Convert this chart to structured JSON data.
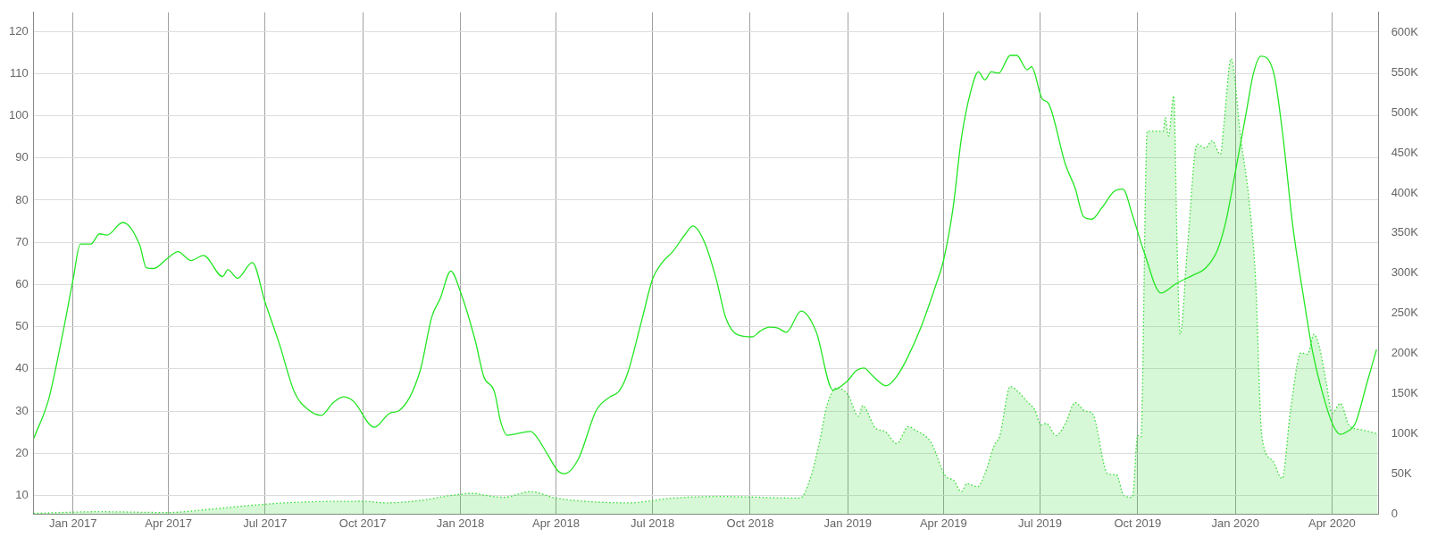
{
  "chart_data": {
    "type": "line",
    "xlim": [
      "2016-11-25",
      "2020-05-15"
    ],
    "xticks": [
      {
        "value": "2017-01-01",
        "label": "Jan 2017"
      },
      {
        "value": "2017-04-01",
        "label": "Apr 2017"
      },
      {
        "value": "2017-07-01",
        "label": "Jul 2017"
      },
      {
        "value": "2017-10-01",
        "label": "Oct 2017"
      },
      {
        "value": "2018-01-01",
        "label": "Jan 2018"
      },
      {
        "value": "2018-04-01",
        "label": "Apr 2018"
      },
      {
        "value": "2018-07-01",
        "label": "Jul 2018"
      },
      {
        "value": "2018-10-01",
        "label": "Oct 2018"
      },
      {
        "value": "2019-01-01",
        "label": "Jan 2019"
      },
      {
        "value": "2019-04-01",
        "label": "Apr 2019"
      },
      {
        "value": "2019-07-01",
        "label": "Jul 2019"
      },
      {
        "value": "2019-10-01",
        "label": "Oct 2019"
      },
      {
        "value": "2020-01-01",
        "label": "Jan 2020"
      },
      {
        "value": "2020-04-01",
        "label": "Apr 2020"
      }
    ],
    "ylim": [
      5.6,
      124.5
    ],
    "yticks": [
      10,
      20,
      30,
      40,
      50,
      60,
      70,
      80,
      90,
      100,
      110,
      120
    ],
    "y2lim": [
      0,
      625000
    ],
    "y2ticks": [
      0,
      {
        "value": 50000,
        "label": "50K"
      },
      {
        "value": 100000,
        "label": "100K"
      },
      {
        "value": 150000,
        "label": "150K"
      },
      {
        "value": 200000,
        "label": "200K"
      },
      {
        "value": 250000,
        "label": "250K"
      },
      {
        "value": 300000,
        "label": "300K"
      },
      {
        "value": 350000,
        "label": "350K"
      },
      {
        "value": 400000,
        "label": "400K"
      },
      {
        "value": 450000,
        "label": "450K"
      },
      {
        "value": 500000,
        "label": "500K"
      },
      {
        "value": 550000,
        "label": "550K"
      },
      {
        "value": 600000,
        "label": "600K"
      }
    ],
    "grid": true,
    "legend": false,
    "marker": "none",
    "series": [
      {
        "type": "area",
        "axis": "y2",
        "color": "#33dd33",
        "line_style": "dotted",
        "x": [
          "2016-11-25",
          "2017-01-26",
          "2017-03-31",
          "2017-05-10",
          "2017-06-18",
          "2017-08-05",
          "2017-10-01",
          "2017-10-23",
          "2017-11-24",
          "2017-12-22",
          "2018-01-14",
          "2018-01-22",
          "2018-02-11",
          "2018-03-08",
          "2018-04-01",
          "2018-04-28",
          "2018-06-08",
          "2018-07-20",
          "2018-09-02",
          "2018-11-17",
          "2018-11-26",
          "2018-12-05",
          "2018-12-12",
          "2018-12-21",
          "2019-01-01",
          "2019-01-11",
          "2019-01-15",
          "2019-01-27",
          "2019-02-05",
          "2019-02-16",
          "2019-02-27",
          "2019-03-05",
          "2019-03-20",
          "2019-04-04",
          "2019-04-10",
          "2019-04-18",
          "2019-04-23",
          "2019-05-03",
          "2019-05-10",
          "2019-05-19",
          "2019-05-24",
          "2019-06-03",
          "2019-06-10",
          "2019-06-19",
          "2019-06-26",
          "2019-07-02",
          "2019-07-07",
          "2019-07-16",
          "2019-07-25",
          "2019-08-03",
          "2019-08-13",
          "2019-08-19",
          "2019-09-03",
          "2019-09-11",
          "2019-09-18",
          "2019-09-26",
          "2019-10-01",
          "2019-10-04",
          "2019-10-10",
          "2019-10-25",
          "2019-10-27",
          "2019-10-30",
          "2019-11-04",
          "2019-11-07",
          "2019-11-10",
          "2019-11-17",
          "2019-11-26",
          "2019-12-04",
          "2019-12-10",
          "2019-12-18",
          "2019-12-21",
          "2019-12-28",
          "2020-01-06",
          "2020-01-14",
          "2020-01-20",
          "2020-01-26",
          "2020-02-05",
          "2020-02-14",
          "2020-02-22",
          "2020-03-03",
          "2020-03-09",
          "2020-03-15",
          "2020-03-20",
          "2020-03-27",
          "2020-04-01",
          "2020-04-09",
          "2020-04-17",
          "2020-04-29",
          "2020-05-14"
        ],
        "values": [
          1000,
          3000,
          2000,
          6000,
          11000,
          15000,
          16000,
          14000,
          17000,
          23000,
          26000,
          24000,
          21000,
          28000,
          20000,
          16000,
          14000,
          20000,
          22000,
          20000,
          42000,
          88000,
          134000,
          157000,
          149000,
          122000,
          135000,
          107000,
          103000,
          88000,
          109000,
          105000,
          90000,
          46000,
          43000,
          28000,
          38000,
          34000,
          50000,
          86000,
          97000,
          159000,
          153000,
          140000,
          130000,
          111000,
          113000,
          98000,
          113000,
          139000,
          128000,
          126000,
          50000,
          49000,
          23000,
          21000,
          98000,
          96000,
          477000,
          477000,
          494000,
          471000,
          521000,
          343000,
          224000,
          335000,
          461000,
          456000,
          465000,
          448000,
          482000,
          567000,
          469000,
          390000,
          293000,
          96000,
          67000,
          44000,
          130000,
          201000,
          199000,
          224000,
          209000,
          161000,
          126000,
          138000,
          111000,
          105000,
          100000
        ]
      },
      {
        "type": "line",
        "color": "#22e622",
        "line_style": "solid",
        "x": [
          "2016-11-25",
          "2016-12-09",
          "2016-12-22",
          "2017-01-01",
          "2017-01-08",
          "2017-01-18",
          "2017-01-26",
          "2017-02-02",
          "2017-02-17",
          "2017-03-05",
          "2017-03-11",
          "2017-03-18",
          "2017-03-31",
          "2017-04-10",
          "2017-04-22",
          "2017-05-04",
          "2017-05-22",
          "2017-05-27",
          "2017-06-05",
          "2017-06-19",
          "2017-07-01",
          "2017-07-14",
          "2017-07-29",
          "2017-08-11",
          "2017-08-23",
          "2017-09-03",
          "2017-09-13",
          "2017-09-22",
          "2017-10-12",
          "2017-10-27",
          "2017-11-04",
          "2017-11-24",
          "2017-12-05",
          "2017-12-13",
          "2017-12-23",
          "2018-01-01",
          "2018-01-15",
          "2018-01-23",
          "2018-02-02",
          "2018-02-08",
          "2018-02-14",
          "2018-03-08",
          "2018-03-13",
          "2018-03-24",
          "2018-04-03",
          "2018-04-09",
          "2018-04-22",
          "2018-05-09",
          "2018-05-22",
          "2018-05-30",
          "2018-06-07",
          "2018-06-21",
          "2018-07-01",
          "2018-07-10",
          "2018-07-20",
          "2018-08-01",
          "2018-08-08",
          "2018-08-19",
          "2018-08-30",
          "2018-09-08",
          "2018-09-19",
          "2018-10-03",
          "2018-10-10",
          "2018-10-19",
          "2018-10-27",
          "2018-11-04",
          "2018-11-18",
          "2018-12-02",
          "2018-12-18",
          "2018-12-31",
          "2019-01-09",
          "2019-01-16",
          "2019-01-25",
          "2019-02-06",
          "2019-02-16",
          "2019-02-26",
          "2019-03-11",
          "2019-03-25",
          "2019-04-01",
          "2019-04-10",
          "2019-04-18",
          "2019-04-27",
          "2019-05-04",
          "2019-05-10",
          "2019-05-16",
          "2019-05-23",
          "2019-06-03",
          "2019-06-09",
          "2019-06-19",
          "2019-06-23",
          "2019-07-03",
          "2019-07-09",
          "2019-07-25",
          "2019-08-03",
          "2019-08-11",
          "2019-08-19",
          "2019-08-28",
          "2019-09-09",
          "2019-09-17",
          "2019-09-26",
          "2019-10-07",
          "2019-10-23",
          "2019-11-06",
          "2019-11-22",
          "2019-12-04",
          "2019-12-15",
          "2019-12-23",
          "2019-12-31",
          "2020-01-11",
          "2020-01-18",
          "2020-01-25",
          "2020-01-30",
          "2020-02-07",
          "2020-02-15",
          "2020-02-24",
          "2020-03-05",
          "2020-03-14",
          "2020-03-24",
          "2020-04-02",
          "2020-04-09",
          "2020-04-15",
          "2020-04-23",
          "2020-05-04",
          "2020-05-13"
        ],
        "values": [
          23.5,
          32.7,
          47.9,
          61,
          69.6,
          69.6,
          72,
          71.7,
          74.7,
          69.3,
          64,
          63.8,
          66.2,
          67.8,
          65.7,
          66.9,
          61.9,
          63.5,
          61.5,
          65.2,
          55.8,
          46.3,
          34.3,
          30.3,
          29,
          32,
          33.4,
          32.4,
          26.2,
          29.6,
          30.1,
          39.5,
          52.3,
          56.7,
          63.2,
          58.3,
          46.7,
          38.2,
          34.6,
          27.4,
          24.3,
          25.2,
          24.2,
          19.8,
          15.8,
          15.2,
          18.6,
          30.2,
          33.4,
          34.6,
          38.6,
          51.7,
          61.3,
          65.2,
          67.8,
          72,
          73.9,
          70,
          61.3,
          52.1,
          48.1,
          47.6,
          48.9,
          49.9,
          49.7,
          48.7,
          53.7,
          48.9,
          35,
          37,
          39.6,
          40.2,
          38.2,
          36,
          38.2,
          42.6,
          50,
          60,
          65.6,
          78,
          94.8,
          106,
          110.4,
          108.5,
          110.4,
          110.1,
          114.3,
          114.3,
          110.9,
          111.6,
          104,
          102.9,
          88.4,
          82.9,
          76.1,
          75.5,
          78.1,
          82.1,
          82.6,
          76.5,
          67.7,
          58,
          60.2,
          62.2,
          63.9,
          68.1,
          74.9,
          85.3,
          100.4,
          110,
          114.1,
          113.8,
          109.2,
          94.8,
          74.1,
          57.4,
          43.8,
          33.5,
          26.7,
          24.5,
          25.1,
          27.1,
          36.7,
          44.6
        ]
      }
    ]
  }
}
